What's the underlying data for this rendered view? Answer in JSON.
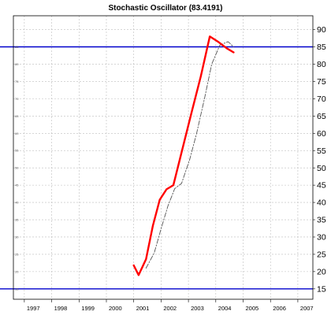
{
  "chart_data": {
    "type": "line",
    "title": "Stochastic Oscillator (83.4191)",
    "xlabel": "",
    "ylabel": "",
    "xlim": [
      1996.6,
      2007.55
    ],
    "ylim": [
      12,
      94
    ],
    "x_ticks": [
      {
        "value": 1997.0,
        "label": "1997"
      },
      {
        "value": 1998.0,
        "label": "1998"
      },
      {
        "value": 1999.0,
        "label": "1999"
      },
      {
        "value": 2000.0,
        "label": "2000"
      },
      {
        "value": 2001.0,
        "label": "2001"
      },
      {
        "value": 2002.0,
        "label": "2002"
      },
      {
        "value": 2003.0,
        "label": "2003"
      },
      {
        "value": 2004.0,
        "label": "2004"
      },
      {
        "value": 2005.0,
        "label": "2005"
      },
      {
        "value": 2006.0,
        "label": "2006"
      },
      {
        "value": 2007.0,
        "label": "2007"
      }
    ],
    "y_ticks_right": [
      "15",
      "20",
      "25",
      "30",
      "35",
      "40",
      "45",
      "50",
      "55",
      "60",
      "65",
      "70",
      "75",
      "80",
      "85",
      "90"
    ],
    "y_ticks_left": [
      "15",
      "20",
      "25",
      "30",
      "35",
      "40",
      "45",
      "50",
      "55",
      "60",
      "65",
      "70",
      "75",
      "80",
      "85"
    ],
    "grid": true,
    "reference_lines": [
      85,
      15
    ],
    "series": [
      {
        "style": "solid",
        "color": "#ff0000",
        "points": [
          [
            2001.0,
            21.8
          ],
          [
            2001.18,
            19.0
          ],
          [
            2001.45,
            23.6
          ],
          [
            2001.7,
            33.3
          ],
          [
            2001.95,
            40.8
          ],
          [
            2002.2,
            43.8
          ],
          [
            2002.45,
            45.0
          ],
          [
            2002.75,
            54.5
          ],
          [
            2003.1,
            65.6
          ],
          [
            2003.45,
            76.4
          ],
          [
            2003.78,
            88.0
          ],
          [
            2004.1,
            86.4
          ],
          [
            2004.4,
            84.6
          ],
          [
            2004.65,
            83.4
          ]
        ]
      },
      {
        "style": "dashed",
        "color": "#555555",
        "points": [
          [
            2001.45,
            21.0
          ],
          [
            2001.75,
            25.4
          ],
          [
            2002.0,
            32.4
          ],
          [
            2002.25,
            39.0
          ],
          [
            2002.5,
            44.0
          ],
          [
            2002.75,
            45.5
          ],
          [
            2003.05,
            52.5
          ],
          [
            2003.3,
            60.0
          ],
          [
            2003.6,
            70.5
          ],
          [
            2003.85,
            80.0
          ],
          [
            2004.15,
            85.5
          ],
          [
            2004.45,
            86.5
          ],
          [
            2004.65,
            85.0
          ]
        ]
      }
    ]
  },
  "colors": {
    "reference_line": "#0000cc",
    "grid": "#bdbdbd"
  }
}
